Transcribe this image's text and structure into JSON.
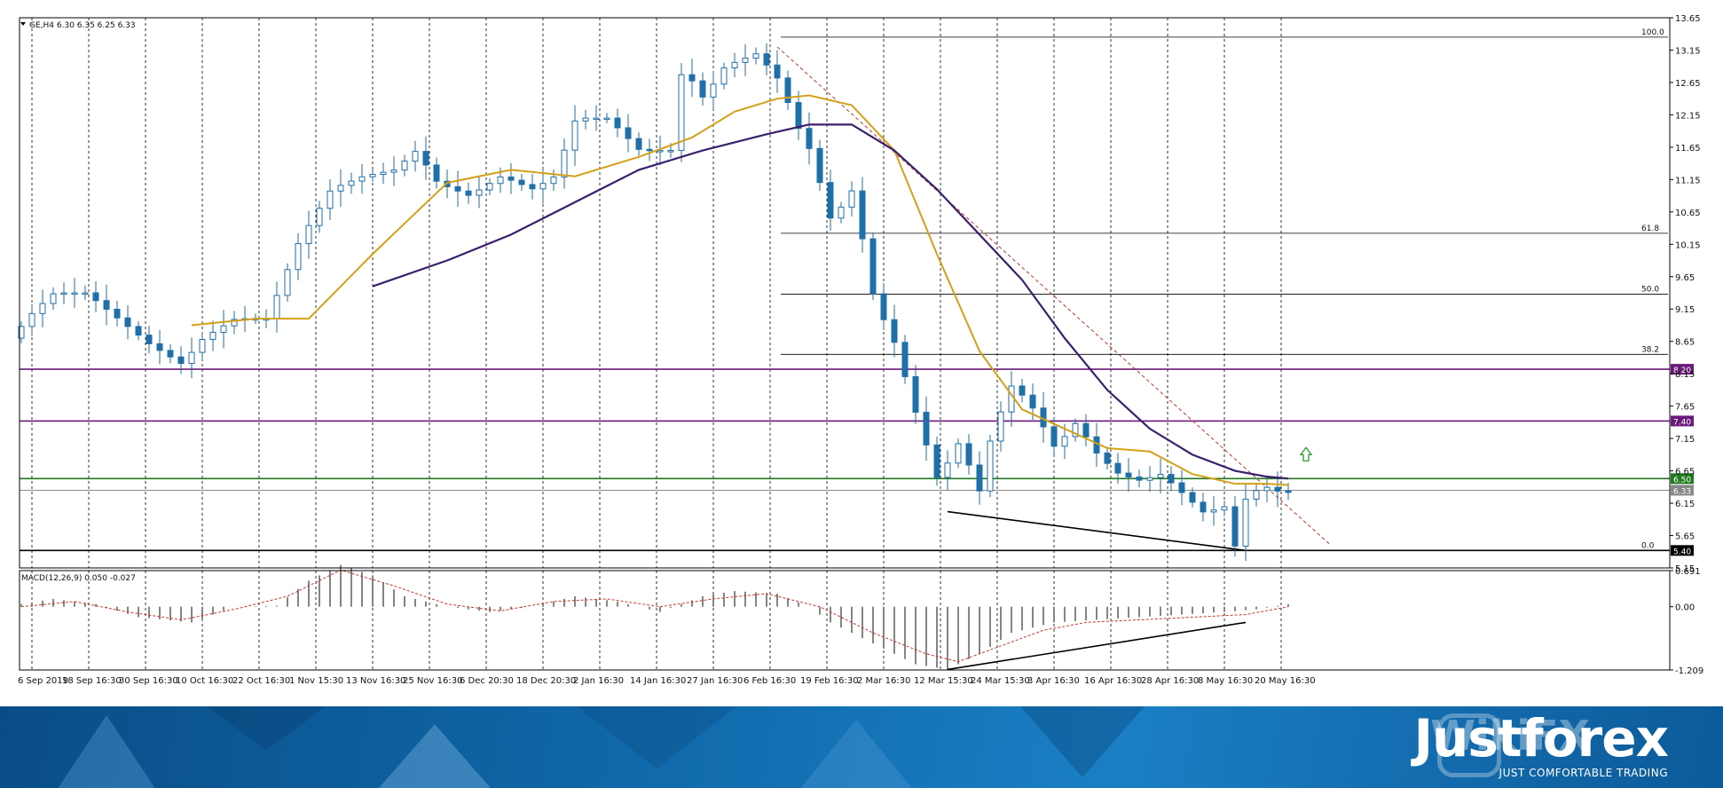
{
  "chart_data": {
    "type": "candlestick",
    "symbol_header": "GE,H4  6.30 6.35 6.25 6.33",
    "y_ticks": [
      "13.65",
      "13.15",
      "12.65",
      "12.15",
      "11.65",
      "11.15",
      "10.65",
      "10.15",
      "9.65",
      "9.15",
      "8.65",
      "8.15",
      "7.65",
      "7.15",
      "6.65",
      "6.15",
      "5.65",
      "5.15"
    ],
    "ylim": [
      5.15,
      13.65
    ],
    "x_ticks": [
      "6 Sep 2019",
      "18 Sep 16:30",
      "30 Sep 16:30",
      "10 Oct 16:30",
      "22 Oct 16:30",
      "1 Nov 15:30",
      "13 Nov 16:30",
      "25 Nov 16:30",
      "6 Dec 20:30",
      "18 Dec 20:30",
      "2 Jan 16:30",
      "14 Jan 16:30",
      "27 Jan 16:30",
      "6 Feb 16:30",
      "19 Feb 16:30",
      "2 Mar 16:30",
      "12 Mar 15:30",
      "24 Mar 15:30",
      "3 Apr 16:30",
      "16 Apr 16:30",
      "28 Apr 16:30",
      "8 May 16:30",
      "20 May 16:30"
    ],
    "price_path": [
      [
        0,
        8.7
      ],
      [
        2,
        9.1
      ],
      [
        4,
        9.4
      ],
      [
        7,
        9.4
      ],
      [
        10,
        9.0
      ],
      [
        13,
        8.6
      ],
      [
        16,
        8.3
      ],
      [
        18,
        8.7
      ],
      [
        21,
        9.0
      ],
      [
        24,
        9.0
      ],
      [
        27,
        10.2
      ],
      [
        30,
        11.0
      ],
      [
        33,
        11.2
      ],
      [
        36,
        11.3
      ],
      [
        38,
        11.6
      ],
      [
        40,
        11.1
      ],
      [
        43,
        10.9
      ],
      [
        46,
        11.2
      ],
      [
        49,
        11.0
      ],
      [
        51,
        11.2
      ],
      [
        53,
        12.1
      ],
      [
        56,
        12.1
      ],
      [
        59,
        11.6
      ],
      [
        62,
        11.6
      ],
      [
        63,
        12.9
      ],
      [
        65,
        12.4
      ],
      [
        67,
        12.9
      ],
      [
        70,
        13.1
      ],
      [
        72,
        12.7
      ],
      [
        74,
        11.9
      ],
      [
        75,
        11.6
      ],
      [
        77,
        10.5
      ],
      [
        79,
        11.0
      ],
      [
        81,
        9.3
      ],
      [
        83,
        8.6
      ],
      [
        85,
        7.5
      ],
      [
        87,
        6.5
      ],
      [
        89,
        7.1
      ],
      [
        91,
        6.3
      ],
      [
        92,
        7.2
      ],
      [
        94,
        8.0
      ],
      [
        96,
        7.6
      ],
      [
        98,
        7.0
      ],
      [
        100,
        7.4
      ],
      [
        102,
        6.9
      ],
      [
        104,
        6.6
      ],
      [
        106,
        6.5
      ],
      [
        108,
        6.6
      ],
      [
        110,
        6.3
      ],
      [
        112,
        6.0
      ],
      [
        114,
        6.1
      ],
      [
        115,
        5.42
      ],
      [
        116,
        6.3
      ],
      [
        118,
        6.4
      ],
      [
        119,
        6.33
      ]
    ],
    "ema_orange": [
      [
        16,
        8.9
      ],
      [
        22,
        9.0
      ],
      [
        27,
        9.0
      ],
      [
        33,
        10.0
      ],
      [
        40,
        11.1
      ],
      [
        46,
        11.3
      ],
      [
        52,
        11.2
      ],
      [
        58,
        11.5
      ],
      [
        63,
        11.8
      ],
      [
        67,
        12.2
      ],
      [
        71,
        12.4
      ],
      [
        74,
        12.45
      ],
      [
        78,
        12.3
      ],
      [
        82,
        11.6
      ],
      [
        86,
        10.0
      ],
      [
        90,
        8.5
      ],
      [
        94,
        7.6
      ],
      [
        98,
        7.3
      ],
      [
        102,
        7.0
      ],
      [
        106,
        6.95
      ],
      [
        110,
        6.6
      ],
      [
        114,
        6.45
      ],
      [
        117,
        6.45
      ],
      [
        119,
        6.43
      ]
    ],
    "ema_purple": [
      [
        33,
        9.5
      ],
      [
        40,
        9.9
      ],
      [
        46,
        10.3
      ],
      [
        52,
        10.8
      ],
      [
        58,
        11.3
      ],
      [
        64,
        11.6
      ],
      [
        70,
        11.85
      ],
      [
        74,
        12.0
      ],
      [
        78,
        12.0
      ],
      [
        82,
        11.6
      ],
      [
        86,
        11.0
      ],
      [
        90,
        10.3
      ],
      [
        94,
        9.6
      ],
      [
        98,
        8.7
      ],
      [
        102,
        7.9
      ],
      [
        106,
        7.3
      ],
      [
        110,
        6.9
      ],
      [
        114,
        6.65
      ],
      [
        117,
        6.56
      ],
      [
        119,
        6.53
      ]
    ],
    "fib_levels": [
      {
        "label": "100.0",
        "value": 13.35
      },
      {
        "label": "61.8",
        "value": 10.32
      },
      {
        "label": "50.0",
        "value": 9.38
      },
      {
        "label": "38.2",
        "value": 8.45
      },
      {
        "label": "0.0",
        "value": 5.42
      }
    ],
    "horizontal_levels": [
      {
        "label": "8.20",
        "value": 8.22,
        "color": "#6a1a7a"
      },
      {
        "label": "7.40",
        "value": 7.42,
        "color": "#6a1a7a"
      },
      {
        "label": "6.50",
        "value": 6.53,
        "color": "#1f7a1f"
      },
      {
        "label": "6.33",
        "value": 6.35,
        "color": "#888888"
      },
      {
        "label": "5.40",
        "value": 5.42,
        "color": "#000000"
      }
    ],
    "support_line": [
      [
        87,
        6.02
      ],
      [
        115,
        5.42
      ]
    ],
    "dashed_trend": [
      [
        71,
        13.2
      ],
      [
        123,
        5.5
      ]
    ],
    "macd": {
      "label": "MACD(12,26,9) 0.050 -0.027",
      "y_ticks": [
        "0.691",
        "0.00",
        "-1.209"
      ],
      "ylim": [
        -1.209,
        0.691
      ],
      "hist_path": [
        [
          0,
          0.05
        ],
        [
          3,
          0.15
        ],
        [
          7,
          0.05
        ],
        [
          11,
          -0.2
        ],
        [
          16,
          -0.3
        ],
        [
          20,
          0.0
        ],
        [
          24,
          0.02
        ],
        [
          27,
          0.5
        ],
        [
          30,
          0.8
        ],
        [
          33,
          0.6
        ],
        [
          36,
          0.2
        ],
        [
          40,
          0.0
        ],
        [
          44,
          -0.1
        ],
        [
          48,
          0.0
        ],
        [
          52,
          0.2
        ],
        [
          56,
          0.1
        ],
        [
          60,
          -0.1
        ],
        [
          64,
          0.2
        ],
        [
          67,
          0.3
        ],
        [
          71,
          0.25
        ],
        [
          74,
          0.0
        ],
        [
          76,
          -0.3
        ],
        [
          80,
          -0.7
        ],
        [
          84,
          -1.1
        ],
        [
          87,
          -1.2
        ],
        [
          90,
          -0.9
        ],
        [
          93,
          -0.5
        ],
        [
          97,
          -0.3
        ],
        [
          101,
          -0.25
        ],
        [
          105,
          -0.2
        ],
        [
          109,
          -0.15
        ],
        [
          113,
          -0.1
        ],
        [
          116,
          -0.05
        ],
        [
          119,
          0.05
        ]
      ],
      "signal_path": [
        [
          0,
          0.0
        ],
        [
          5,
          0.1
        ],
        [
          10,
          -0.1
        ],
        [
          15,
          -0.25
        ],
        [
          20,
          -0.05
        ],
        [
          25,
          0.2
        ],
        [
          30,
          0.7
        ],
        [
          35,
          0.4
        ],
        [
          40,
          0.05
        ],
        [
          45,
          -0.08
        ],
        [
          50,
          0.1
        ],
        [
          55,
          0.15
        ],
        [
          60,
          0.0
        ],
        [
          65,
          0.15
        ],
        [
          70,
          0.25
        ],
        [
          75,
          0.0
        ],
        [
          80,
          -0.5
        ],
        [
          85,
          -0.9
        ],
        [
          88,
          -1.05
        ],
        [
          92,
          -0.75
        ],
        [
          96,
          -0.45
        ],
        [
          100,
          -0.3
        ],
        [
          105,
          -0.25
        ],
        [
          110,
          -0.2
        ],
        [
          115,
          -0.15
        ],
        [
          119,
          0.0
        ]
      ],
      "trend_line": [
        [
          87,
          -1.2
        ],
        [
          115,
          -0.3
        ]
      ]
    }
  },
  "colors": {
    "candle": "#1f6fa8",
    "ema_orange": "#d4a017",
    "ema_purple": "#3a1f6e",
    "grid": "#000000",
    "arrow": "#2a9a2a"
  },
  "banner": {
    "watermark": "WikiFX",
    "brand": "Justforex",
    "tagline": "JUST COMFORTABLE TRADING"
  }
}
